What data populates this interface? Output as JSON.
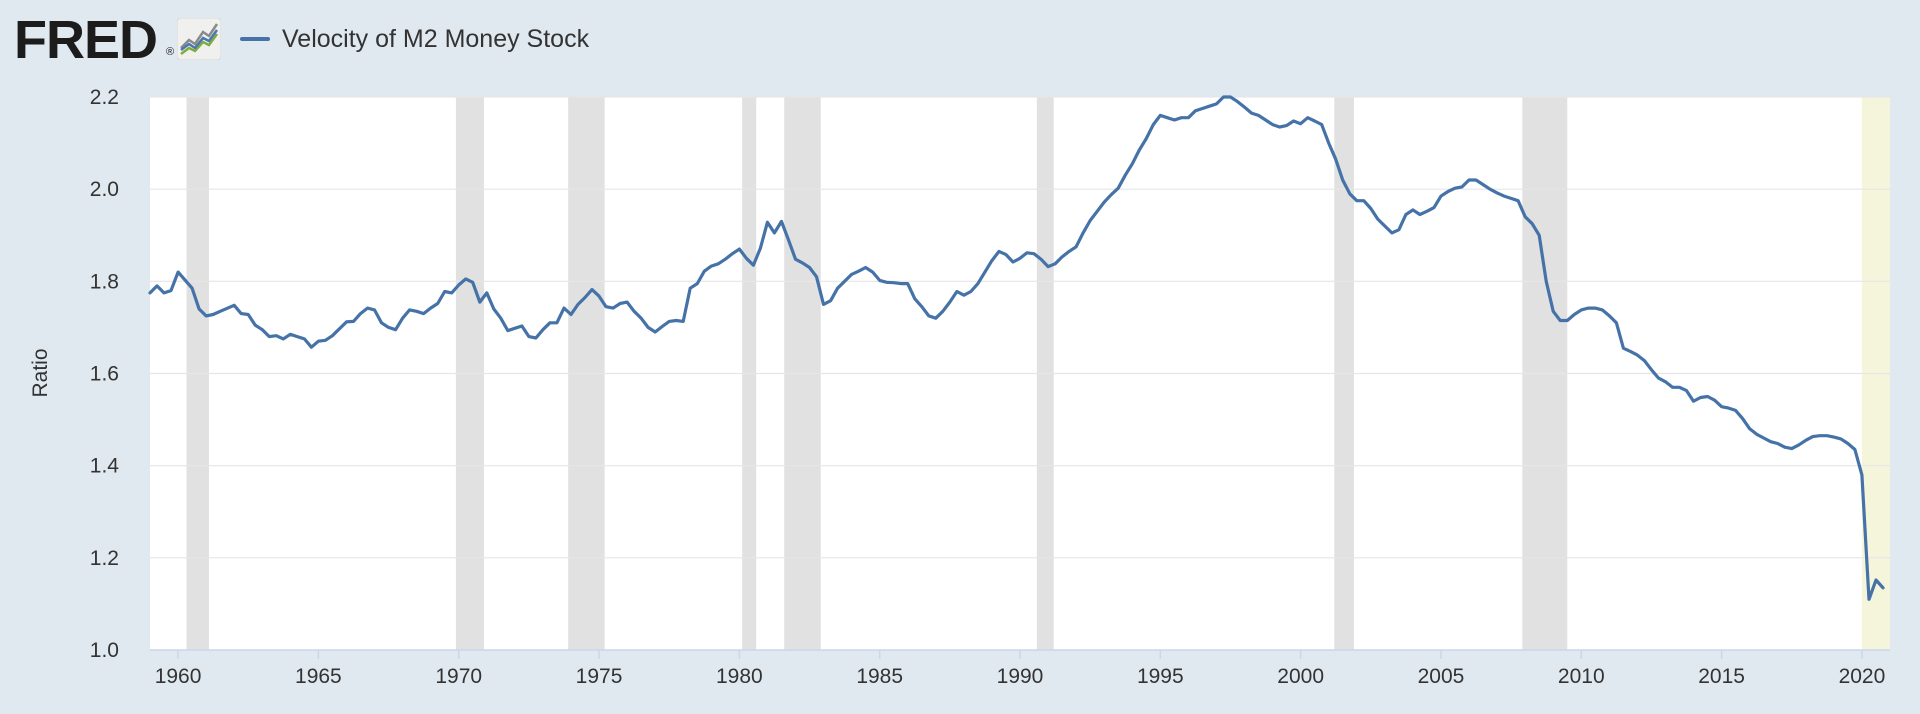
{
  "brand": {
    "logo_text": "FRED",
    "registered_mark": "®",
    "icon": "line-chart-icon"
  },
  "colors": {
    "background": "#e1e9f0",
    "plot_background": "#ffffff",
    "series": "#4572a7",
    "recession": "#e1e1e1",
    "forecast_band": "#f5f5dc",
    "grid": "#e6e6e6"
  },
  "chart_data": {
    "type": "line",
    "title": "",
    "xlabel": "",
    "ylabel": "Ratio",
    "xlim": [
      1959.0,
      2021.0
    ],
    "ylim": [
      1.0,
      2.2
    ],
    "y_ticks": [
      "1.0",
      "1.2",
      "1.4",
      "1.6",
      "1.8",
      "2.0",
      "2.2"
    ],
    "x_ticks": [
      "1960",
      "1965",
      "1970",
      "1975",
      "1980",
      "1985",
      "1990",
      "1995",
      "2000",
      "2005",
      "2010",
      "2015",
      "2020"
    ],
    "grid": "horizontal",
    "legend": "top-left",
    "recessions": [
      [
        1960.3,
        1961.1
      ],
      [
        1969.9,
        1970.9
      ],
      [
        1973.9,
        1975.2
      ],
      [
        1980.1,
        1980.6
      ],
      [
        1981.6,
        1982.9
      ],
      [
        1990.6,
        1991.2
      ],
      [
        2001.2,
        2001.9
      ],
      [
        2007.9,
        2009.5
      ]
    ],
    "highlight_band": [
      2020.0,
      2021.0
    ],
    "series": [
      {
        "name": "Velocity of M2 Money Stock",
        "color": "#4572a7",
        "x": [
          1959.0,
          1959.25,
          1959.5,
          1959.75,
          1960.0,
          1960.5,
          1960.75,
          1961.0,
          1961.25,
          1961.5,
          1962.0,
          1962.25,
          1962.5,
          1962.75,
          1963.0,
          1963.25,
          1963.5,
          1963.75,
          1964.0,
          1964.25,
          1964.5,
          1964.75,
          1965.0,
          1965.25,
          1965.5,
          1966.0,
          1966.25,
          1966.5,
          1966.75,
          1967.0,
          1967.25,
          1967.5,
          1967.75,
          1968.0,
          1968.25,
          1968.5,
          1968.75,
          1969.0,
          1969.25,
          1969.5,
          1969.75,
          1970.0,
          1970.25,
          1970.5,
          1970.75,
          1971.0,
          1971.25,
          1971.5,
          1971.75,
          1972.0,
          1972.25,
          1972.5,
          1972.75,
          1973.0,
          1973.25,
          1973.5,
          1973.75,
          1974.0,
          1974.25,
          1974.5,
          1974.75,
          1975.0,
          1975.25,
          1975.5,
          1975.75,
          1976.0,
          1976.25,
          1976.5,
          1976.75,
          1977.0,
          1977.25,
          1977.5,
          1977.75,
          1978.0,
          1978.25,
          1978.5,
          1978.75,
          1979.0,
          1979.25,
          1979.5,
          1979.75,
          1980.0,
          1980.25,
          1980.5,
          1980.75,
          1981.0,
          1981.25,
          1981.5,
          1981.75,
          1982.0,
          1982.25,
          1982.5,
          1982.75,
          1983.0,
          1983.25,
          1983.5,
          1983.75,
          1984.0,
          1984.25,
          1984.5,
          1984.75,
          1985.0,
          1985.25,
          1985.5,
          1985.75,
          1986.0,
          1986.25,
          1986.5,
          1986.75,
          1987.0,
          1987.25,
          1987.5,
          1987.75,
          1988.0,
          1988.25,
          1988.5,
          1988.75,
          1989.0,
          1989.25,
          1989.5,
          1989.75,
          1990.0,
          1990.25,
          1990.5,
          1990.75,
          1991.0,
          1991.25,
          1991.5,
          1991.75,
          1992.0,
          1992.25,
          1992.5,
          1992.75,
          1993.0,
          1993.25,
          1993.5,
          1993.75,
          1994.0,
          1994.25,
          1994.5,
          1994.75,
          1995.0,
          1995.25,
          1995.5,
          1995.75,
          1996.0,
          1996.25,
          1996.5,
          1996.75,
          1997.0,
          1997.25,
          1997.5,
          1997.75,
          1998.0,
          1998.25,
          1998.5,
          1998.75,
          1999.0,
          1999.25,
          1999.5,
          1999.75,
          2000.0,
          2000.25,
          2000.5,
          2000.75,
          2001.0,
          2001.25,
          2001.5,
          2001.75,
          2002.0,
          2002.25,
          2002.5,
          2002.75,
          2003.0,
          2003.25,
          2003.5,
          2003.75,
          2004.0,
          2004.25,
          2004.5,
          2004.75,
          2005.0,
          2005.25,
          2005.5,
          2005.75,
          2006.0,
          2006.25,
          2006.5,
          2006.75,
          2007.0,
          2007.25,
          2007.5,
          2007.75,
          2008.0,
          2008.25,
          2008.5,
          2008.75,
          2009.0,
          2009.25,
          2009.5,
          2009.75,
          2010.0,
          2010.25,
          2010.5,
          2010.75,
          2011.0,
          2011.25,
          2011.5,
          2011.75,
          2012.0,
          2012.25,
          2012.5,
          2012.75,
          2013.0,
          2013.25,
          2013.5,
          2013.75,
          2014.0,
          2014.25,
          2014.5,
          2014.75,
          2015.0,
          2015.25,
          2015.5,
          2015.75,
          2016.0,
          2016.25,
          2016.5,
          2016.75,
          2017.0,
          2017.25,
          2017.5,
          2017.75,
          2018.0,
          2018.25,
          2018.5,
          2018.75,
          2019.0,
          2019.25,
          2019.5,
          2019.75,
          2020.0,
          2020.25,
          2020.5,
          2020.75
        ],
        "values": [
          1.775,
          1.79,
          1.775,
          1.78,
          1.82,
          1.785,
          1.74,
          1.725,
          1.728,
          1.735,
          1.748,
          1.73,
          1.728,
          1.705,
          1.695,
          1.68,
          1.682,
          1.675,
          1.685,
          1.68,
          1.675,
          1.657,
          1.67,
          1.672,
          1.682,
          1.712,
          1.713,
          1.73,
          1.742,
          1.738,
          1.71,
          1.7,
          1.695,
          1.72,
          1.738,
          1.735,
          1.73,
          1.742,
          1.752,
          1.778,
          1.775,
          1.792,
          1.805,
          1.798,
          1.755,
          1.775,
          1.74,
          1.72,
          1.693,
          1.698,
          1.703,
          1.68,
          1.677,
          1.695,
          1.71,
          1.71,
          1.742,
          1.728,
          1.75,
          1.765,
          1.782,
          1.768,
          1.745,
          1.742,
          1.752,
          1.755,
          1.735,
          1.72,
          1.7,
          1.69,
          1.702,
          1.713,
          1.715,
          1.713,
          1.785,
          1.795,
          1.822,
          1.833,
          1.838,
          1.848,
          1.86,
          1.87,
          1.85,
          1.835,
          1.872,
          1.928,
          1.905,
          1.93,
          1.89,
          1.848,
          1.84,
          1.83,
          1.81,
          1.75,
          1.758,
          1.785,
          1.8,
          1.815,
          1.822,
          1.83,
          1.82,
          1.802,
          1.798,
          1.797,
          1.795,
          1.795,
          1.762,
          1.745,
          1.725,
          1.72,
          1.735,
          1.755,
          1.778,
          1.77,
          1.778,
          1.795,
          1.82,
          1.845,
          1.865,
          1.858,
          1.842,
          1.85,
          1.862,
          1.86,
          1.848,
          1.832,
          1.838,
          1.853,
          1.865,
          1.875,
          1.905,
          1.932,
          1.952,
          1.972,
          1.988,
          2.002,
          2.03,
          2.055,
          2.085,
          2.11,
          2.14,
          2.16,
          2.155,
          2.15,
          2.155,
          2.155,
          2.17,
          2.175,
          2.18,
          2.185,
          2.2,
          2.2,
          2.19,
          2.178,
          2.165,
          2.16,
          2.15,
          2.14,
          2.135,
          2.138,
          2.148,
          2.142,
          2.155,
          2.148,
          2.14,
          2.1,
          2.065,
          2.02,
          1.99,
          1.975,
          1.975,
          1.958,
          1.935,
          1.92,
          1.905,
          1.912,
          1.945,
          1.955,
          1.945,
          1.952,
          1.96,
          1.985,
          1.995,
          2.002,
          2.005,
          2.02,
          2.02,
          2.01,
          2.0,
          1.992,
          1.985,
          1.98,
          1.975,
          1.94,
          1.925,
          1.9,
          1.8,
          1.735,
          1.715,
          1.715,
          1.728,
          1.738,
          1.742,
          1.742,
          1.738,
          1.725,
          1.71,
          1.655,
          1.648,
          1.64,
          1.628,
          1.608,
          1.59,
          1.582,
          1.57,
          1.57,
          1.563,
          1.54,
          1.548,
          1.55,
          1.542,
          1.528,
          1.525,
          1.52,
          1.502,
          1.48,
          1.468,
          1.46,
          1.452,
          1.448,
          1.44,
          1.437,
          1.445,
          1.455,
          1.463,
          1.465,
          1.465,
          1.462,
          1.458,
          1.448,
          1.435,
          1.38,
          1.11,
          1.152,
          1.135
        ]
      }
    ]
  }
}
